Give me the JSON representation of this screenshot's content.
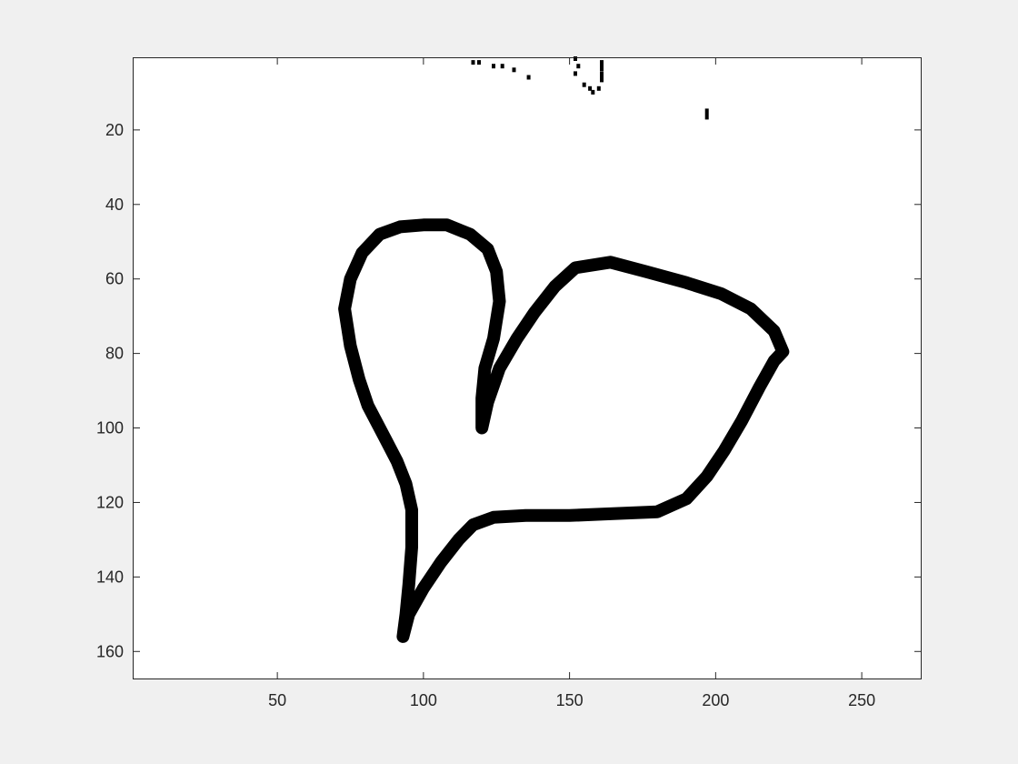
{
  "figure": {
    "background_color": "#f0f0f0",
    "axes_background_color": "#ffffff",
    "axes_edge_color": "#262626",
    "image_color": "#000000",
    "axes": {
      "x_ticks": [
        50,
        100,
        150,
        200,
        250
      ],
      "y_ticks": [
        20,
        40,
        60,
        80,
        100,
        120,
        140,
        160
      ],
      "x_range": [
        0.5,
        270.5
      ],
      "y_range": [
        0.5,
        167.5
      ],
      "y_direction": "reverse"
    }
  },
  "image_content": {
    "description_icon": "heart-outline-sketch",
    "outline": [
      [
        93,
        156
      ],
      [
        95,
        150
      ],
      [
        100,
        143
      ],
      [
        106,
        136
      ],
      [
        112,
        130
      ],
      [
        117,
        126
      ],
      [
        124,
        124
      ],
      [
        135,
        123.5
      ],
      [
        150,
        123.5
      ],
      [
        165,
        123
      ],
      [
        180,
        122.5
      ],
      [
        190,
        119
      ],
      [
        197,
        113
      ],
      [
        203,
        106
      ],
      [
        209,
        98
      ],
      [
        215,
        89
      ],
      [
        220,
        82
      ],
      [
        223,
        79.5
      ],
      [
        220,
        74
      ],
      [
        212,
        68
      ],
      [
        202,
        64
      ],
      [
        190,
        61
      ],
      [
        176,
        58
      ],
      [
        164,
        55.5
      ],
      [
        152,
        57
      ],
      [
        145,
        62
      ],
      [
        138,
        69
      ],
      [
        132,
        76
      ],
      [
        126,
        84
      ],
      [
        122,
        93
      ],
      [
        120,
        100
      ],
      [
        120,
        92
      ],
      [
        121,
        84
      ],
      [
        124,
        76
      ],
      [
        126,
        66
      ],
      [
        125,
        58
      ],
      [
        122,
        52
      ],
      [
        116,
        48
      ],
      [
        108,
        45.5
      ],
      [
        100,
        45.5
      ],
      [
        92,
        46
      ],
      [
        85,
        48
      ],
      [
        79,
        53
      ],
      [
        75,
        60
      ],
      [
        73,
        68
      ],
      [
        75,
        78
      ],
      [
        78,
        87
      ],
      [
        81,
        94
      ],
      [
        87,
        103
      ],
      [
        91,
        109
      ],
      [
        94,
        115
      ],
      [
        96,
        122
      ],
      [
        96,
        132
      ],
      [
        95,
        142
      ],
      [
        94,
        150
      ],
      [
        93,
        156
      ]
    ],
    "specks": [
      [
        117,
        2
      ],
      [
        119,
        2
      ],
      [
        124,
        3
      ],
      [
        127,
        3
      ],
      [
        131,
        4
      ],
      [
        136,
        6
      ],
      [
        152,
        1
      ],
      [
        153,
        3
      ],
      [
        152,
        5
      ],
      [
        155,
        8
      ],
      [
        157,
        9
      ],
      [
        158,
        10
      ],
      [
        160,
        9
      ],
      [
        161,
        2
      ],
      [
        161,
        5
      ],
      [
        197,
        15
      ]
    ]
  }
}
